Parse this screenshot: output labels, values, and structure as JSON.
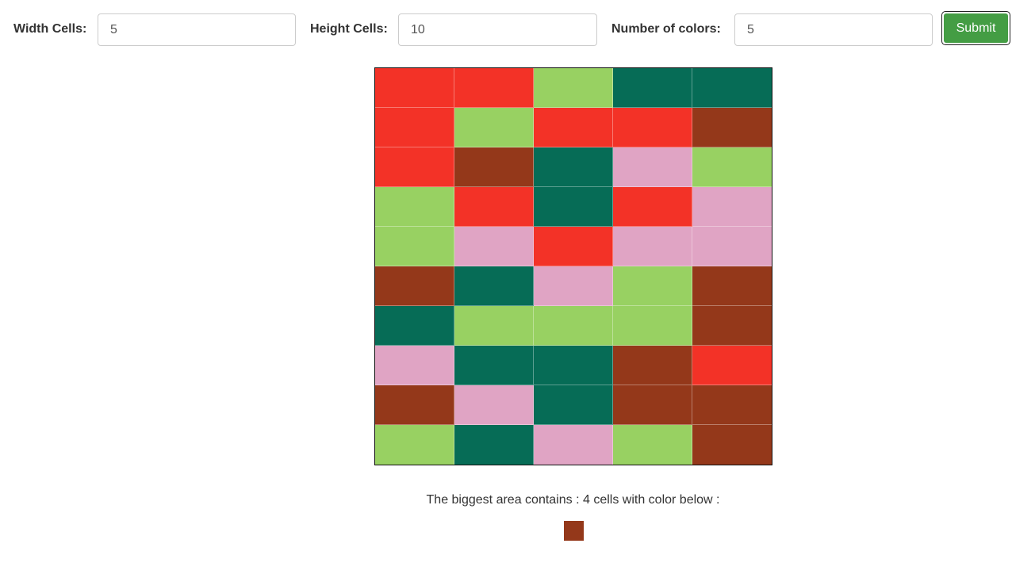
{
  "form": {
    "width_label": "Width Cells:",
    "width_value": "5",
    "height_label": "Height Cells:",
    "height_value": "10",
    "colors_label": "Number of colors:",
    "colors_value": "5",
    "submit_label": "Submit"
  },
  "palette": {
    "red": "#f33227",
    "green": "#98d162",
    "teal": "#066c56",
    "brown": "#94381a",
    "pink": "#e0a4c4"
  },
  "grid": {
    "columns": 5,
    "rows": [
      [
        "red",
        "red",
        "green",
        "teal",
        "teal"
      ],
      [
        "red",
        "green",
        "red",
        "red",
        "brown"
      ],
      [
        "red",
        "brown",
        "teal",
        "pink",
        "green"
      ],
      [
        "green",
        "red",
        "teal",
        "red",
        "pink"
      ],
      [
        "green",
        "pink",
        "red",
        "pink",
        "pink"
      ],
      [
        "brown",
        "teal",
        "pink",
        "green",
        "brown"
      ],
      [
        "teal",
        "green",
        "green",
        "green",
        "brown"
      ],
      [
        "pink",
        "teal",
        "teal",
        "brown",
        "red"
      ],
      [
        "brown",
        "pink",
        "teal",
        "brown",
        "brown"
      ],
      [
        "green",
        "teal",
        "pink",
        "green",
        "brown"
      ]
    ]
  },
  "result": {
    "text": "The biggest area contains : 4 cells with color below :",
    "color": "brown"
  }
}
